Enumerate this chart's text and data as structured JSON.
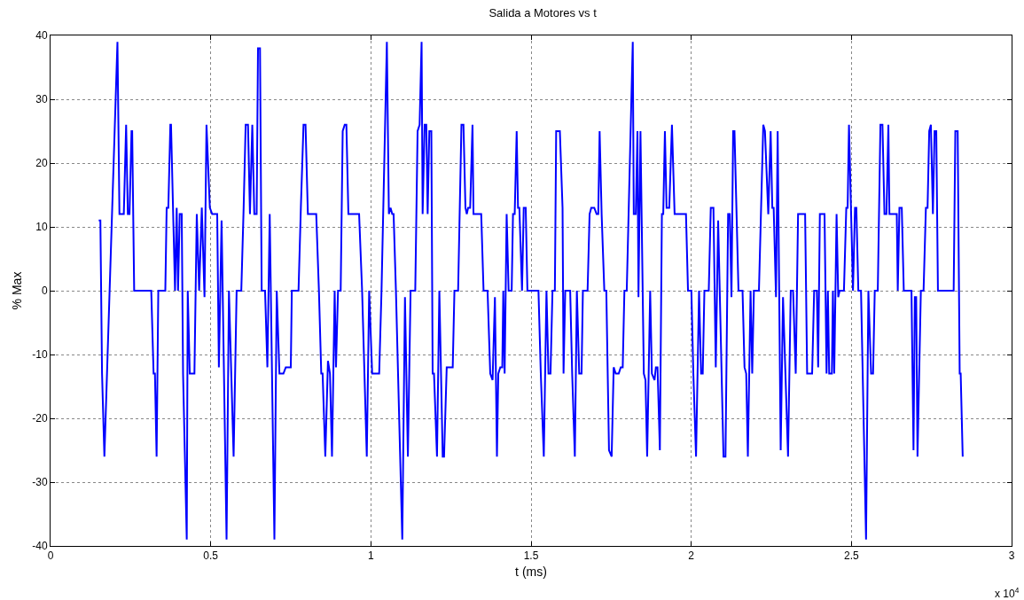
{
  "chart_data": {
    "type": "line",
    "title": "Salida a Motores vs t",
    "xlabel": "t (ms)",
    "ylabel": "% Max",
    "annotations": [
      "x 10$^{4}$"
    ],
    "xlim": [
      0,
      3
    ],
    "xticks": [
      0,
      0.5,
      1,
      1.5,
      2,
      2.5,
      3
    ],
    "ylim": [
      -40,
      40
    ],
    "yticks": [
      -40,
      -30,
      -20,
      -10,
      0,
      10,
      20,
      30,
      40
    ],
    "grid": true,
    "marker": "none",
    "line_style": "solid",
    "series": [
      {
        "color": "#0000ff",
        "x": [
          0.1504,
          0.1556,
          0.1608,
          0.1681,
          0.2089,
          0.2151,
          0.2287,
          0.236,
          0.2413,
          0.2465,
          0.2528,
          0.2549,
          0.2611,
          0.3144,
          0.3217,
          0.3259,
          0.3311,
          0.3364,
          0.3583,
          0.3625,
          0.3677,
          0.374,
          0.3761,
          0.3886,
          0.3938,
          0.398,
          0.4032,
          0.4095,
          0.4137,
          0.4252,
          0.4283,
          0.4346,
          0.4492,
          0.4565,
          0.4639,
          0.4722,
          0.4806,
          0.4868,
          0.4973,
          0.5046,
          0.5203,
          0.5255,
          0.5339,
          0.5495,
          0.5569,
          0.5642,
          0.5715,
          0.5809,
          0.5955,
          0.6028,
          0.6091,
          0.6164,
          0.6225,
          0.6298,
          0.6361,
          0.6434,
          0.6476,
          0.6539,
          0.6591,
          0.6696,
          0.6769,
          0.6842,
          0.6988,
          0.7061,
          0.7145,
          0.727,
          0.7343,
          0.75,
          0.7532,
          0.7741,
          0.7814,
          0.7897,
          0.796,
          0.8033,
          0.8294,
          0.8378,
          0.8451,
          0.8493,
          0.8577,
          0.866,
          0.8723,
          0.8786,
          0.8869,
          0.8911,
          0.8974,
          0.9057,
          0.912,
          0.9183,
          0.9235,
          0.9298,
          0.9632,
          0.9726,
          0.9872,
          0.9946,
          1.004,
          1.0259,
          1.0332,
          1.0499,
          1.0562,
          1.0614,
          1.0667,
          1.0709,
          1.0782,
          1.098,
          1.1064,
          1.1155,
          1.1239,
          1.1385,
          1.1458,
          1.1521,
          1.1583,
          1.1615,
          1.1678,
          1.173,
          1.1772,
          1.1824,
          1.1887,
          1.1928,
          1.197,
          1.2064,
          1.2137,
          1.2242,
          1.2284,
          1.2367,
          1.2555,
          1.2608,
          1.2723,
          1.2827,
          1.289,
          1.2952,
          1.2994,
          1.3036,
          1.3099,
          1.3172,
          1.3203,
          1.3444,
          1.3517,
          1.3642,
          1.3726,
          1.3799,
          1.3872,
          1.3935,
          1.3977,
          1.4039,
          1.4102,
          1.4133,
          1.4175,
          1.4238,
          1.43,
          1.4395,
          1.4436,
          1.4489,
          1.4551,
          1.4593,
          1.4635,
          1.4718,
          1.4771,
          1.4833,
          1.4886,
          1.5231,
          1.5304,
          1.5398,
          1.5481,
          1.5544,
          1.5607,
          1.5669,
          1.5743,
          1.5784,
          1.5899,
          1.5983,
          1.6014,
          1.6067,
          1.6221,
          1.6283,
          1.6367,
          1.643,
          1.6503,
          1.6576,
          1.6618,
          1.6764,
          1.6827,
          1.6879,
          1.6973,
          1.7046,
          1.7098,
          1.714,
          1.7203,
          1.7287,
          1.7349,
          1.7433,
          1.7516,
          1.7579,
          1.7642,
          1.7736,
          1.7799,
          1.7861,
          1.7914,
          1.7987,
          1.8175,
          1.8206,
          1.8269,
          1.8321,
          1.8353,
          1.8415,
          1.852,
          1.8572,
          1.8624,
          1.8718,
          1.8771,
          1.8854,
          1.8896,
          1.8948,
          1.9021,
          1.9084,
          1.9126,
          1.9178,
          1.923,
          1.9314,
          1.9398,
          1.9481,
          1.9836,
          1.9899,
          2.0004,
          2.0066,
          2.015,
          2.0244,
          2.0307,
          2.0359,
          2.0411,
          2.0547,
          2.061,
          2.0693,
          2.0766,
          2.084,
          2.1007,
          2.1069,
          2.1151,
          2.1204,
          2.1256,
          2.1308,
          2.135,
          2.1475,
          2.1601,
          2.1663,
          2.1716,
          2.1768,
          2.1852,
          2.1904,
          2.1956,
          2.2113,
          2.2249,
          2.2301,
          2.2405,
          2.2479,
          2.2531,
          2.2573,
          2.2646,
          2.2698,
          2.2792,
          2.2865,
          2.3022,
          2.3106,
          2.3179,
          2.3262,
          2.3335,
          2.3555,
          2.3618,
          2.3774,
          2.3837,
          2.3921,
          2.3962,
          2.4015,
          2.4161,
          2.4224,
          2.4265,
          2.4307,
          2.4391,
          2.4422,
          2.4464,
          2.4537,
          2.4589,
          2.4631,
          2.4767,
          2.484,
          2.4882,
          2.4924,
          2.5049,
          2.5112,
          2.5154,
          2.5216,
          2.53,
          2.5457,
          2.553,
          2.5614,
          2.5676,
          2.5729,
          2.5823,
          2.5906,
          2.5969,
          2.6032,
          2.6094,
          2.6154,
          2.6186,
          2.6416,
          2.6447,
          2.6499,
          2.6572,
          2.6635,
          2.6875,
          2.6938,
          2.698,
          2.7022,
          2.7063,
          2.7168,
          2.7252,
          2.7325,
          2.7377,
          2.7429,
          2.7481,
          2.7544,
          2.7596,
          2.7649,
          2.7701,
          2.8192,
          2.8244,
          2.8317,
          2.838,
          2.8411,
          2.8474
        ],
        "values": [
          11,
          11,
          -13,
          -26,
          39,
          12,
          12,
          26,
          12,
          12,
          25,
          25,
          0,
          0,
          -13,
          -13,
          -26,
          0,
          0,
          13,
          13,
          26,
          26,
          0,
          13,
          0,
          12,
          12,
          -13,
          -39,
          0,
          -13,
          -13,
          12,
          0,
          13,
          -1,
          26,
          13,
          12,
          12,
          -12,
          11,
          -39,
          0,
          -13,
          -26,
          0,
          0,
          13,
          26,
          26,
          12,
          26,
          12,
          12,
          38,
          38,
          0,
          0,
          -12,
          12,
          -39,
          0,
          -13,
          -13,
          -12,
          -12,
          0,
          0,
          13,
          26,
          26,
          12,
          12,
          0,
          -13,
          -13,
          -26,
          -11,
          -13,
          -26,
          0,
          -12,
          0,
          0,
          25,
          26,
          26,
          12,
          12,
          0,
          -26,
          0,
          -13,
          -13,
          0,
          39,
          12,
          13,
          12,
          12,
          0,
          -39,
          -1,
          -26,
          0,
          0,
          25,
          26,
          39,
          12,
          26,
          26,
          12,
          25,
          25,
          -13,
          -13,
          -26,
          0,
          -26,
          -26,
          -12,
          -12,
          0,
          0,
          26,
          26,
          13,
          12,
          13,
          13,
          26,
          12,
          12,
          0,
          0,
          -13,
          -14,
          -1,
          -26,
          -13,
          -12,
          -12,
          0,
          -13,
          12,
          0,
          0,
          12,
          12,
          25,
          13,
          13,
          0,
          13,
          13,
          0,
          0,
          -13,
          -26,
          0,
          -13,
          -13,
          0,
          0,
          25,
          25,
          13,
          -13,
          0,
          0,
          -13,
          -26,
          0,
          -13,
          -13,
          0,
          0,
          12,
          13,
          13,
          12,
          12,
          25,
          12,
          0,
          0,
          -25,
          -26,
          -12,
          -13,
          -13,
          -12,
          -12,
          0,
          0,
          39,
          12,
          12,
          25,
          -1,
          25,
          -13,
          -14,
          -26,
          0,
          -13,
          -14,
          -12,
          -12,
          -25,
          12,
          12,
          25,
          13,
          13,
          26,
          12,
          12,
          0,
          0,
          -13,
          -26,
          0,
          -13,
          -13,
          0,
          0,
          13,
          13,
          -12,
          11,
          -26,
          -26,
          12,
          12,
          -1,
          25,
          25,
          0,
          0,
          -12,
          -13,
          -26,
          0,
          -13,
          0,
          0,
          26,
          25,
          12,
          25,
          13,
          13,
          -1,
          25,
          -25,
          -1,
          -26,
          0,
          0,
          -13,
          12,
          12,
          -13,
          -13,
          0,
          0,
          -12,
          12,
          12,
          -13,
          0,
          -13,
          -13,
          0,
          -13,
          12,
          -1,
          0,
          0,
          13,
          13,
          26,
          0,
          13,
          13,
          0,
          0,
          -39,
          0,
          -13,
          -13,
          0,
          0,
          26,
          26,
          12,
          12,
          26,
          12,
          12,
          0,
          13,
          13,
          0,
          0,
          -25,
          -1,
          -1,
          -26,
          0,
          0,
          13,
          13,
          25,
          26,
          12,
          25,
          25,
          0,
          0,
          25,
          25,
          -13,
          -13,
          -26
        ]
      }
    ]
  }
}
